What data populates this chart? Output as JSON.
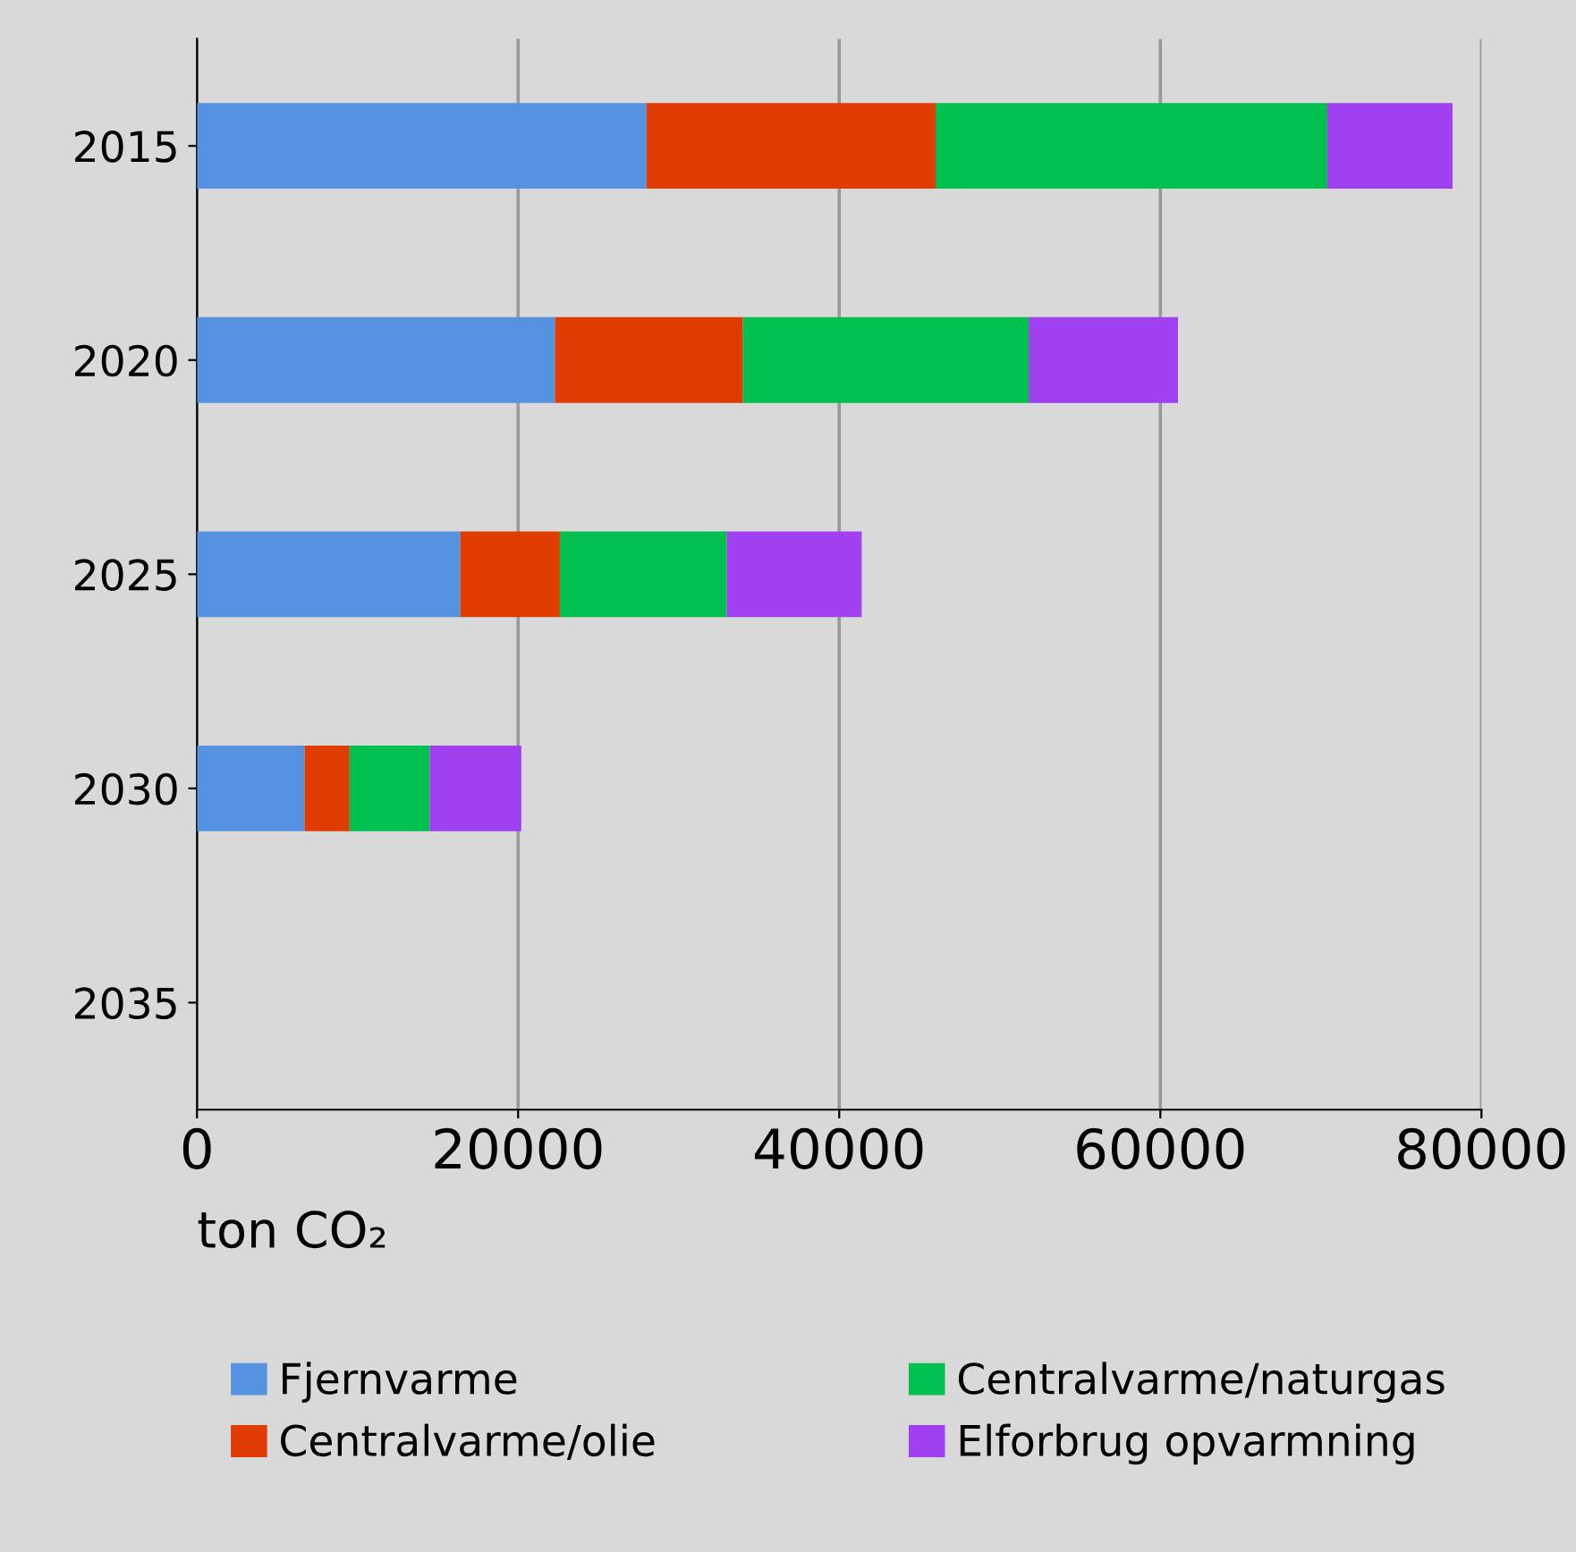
{
  "chart_data": {
    "type": "bar",
    "orientation": "horizontal",
    "stacked": true,
    "categories": [
      "2015",
      "2020",
      "2025",
      "2030",
      "2035"
    ],
    "series": [
      {
        "name": "Fjernvarme",
        "color": "#5592e0",
        "values": [
          28000,
          22300,
          16400,
          6700,
          0
        ]
      },
      {
        "name": "Centralvarme/olie",
        "color": "#e03c00",
        "values": [
          18000,
          11700,
          6200,
          2800,
          0
        ]
      },
      {
        "name": "Centralvarme/naturgas",
        "color": "#00c050",
        "values": [
          24400,
          17800,
          10400,
          5000,
          0
        ]
      },
      {
        "name": "Elforbrug opvarmning",
        "color": "#a040f0",
        "values": [
          7800,
          9300,
          8400,
          5700,
          0
        ]
      }
    ],
    "xlabel": "ton CO₂",
    "xlim": [
      0,
      80000
    ],
    "xticks": [
      0,
      20000,
      40000,
      60000,
      80000
    ],
    "grid": "x",
    "legend": "bottom"
  }
}
